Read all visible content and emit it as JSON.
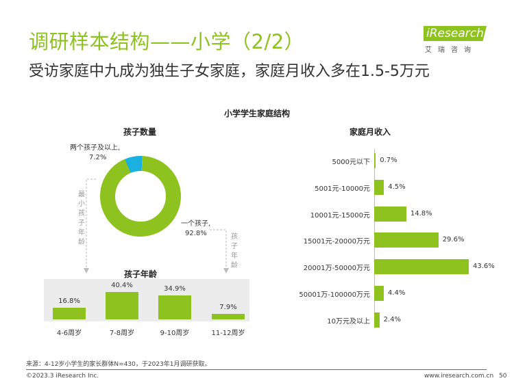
{
  "header": {
    "title": "调研样本结构——小学（2/2）",
    "subtitle": "受访家庭中九成为独生子女家庭，家庭月收入多在1.5-5万元",
    "logo_text": "iResearch",
    "logo_cn": "艾瑞咨询"
  },
  "colors": {
    "accent": "#8dc21f",
    "secondary": "#1ab0e0",
    "gray": "#999999"
  },
  "chart_title": "小学学生家庭结构",
  "chart_data": [
    {
      "type": "pie",
      "title": "孩子数量",
      "slices": [
        {
          "label": "一个孩子,",
          "value": 92.8,
          "value_label": "92.8%",
          "color": "#8dc21f"
        },
        {
          "label": "两个孩子及以上,",
          "value": 7.2,
          "value_label": "7.2%",
          "color": "#1ab0e0"
        }
      ]
    },
    {
      "type": "bar",
      "title": "孩子年龄",
      "categories": [
        "4-6周岁",
        "7-8周岁",
        "9-10周岁",
        "11-12周岁"
      ],
      "values": [
        16.8,
        40.4,
        34.9,
        7.9
      ],
      "value_labels": [
        "16.8%",
        "40.4%",
        "34.9%",
        "7.9%"
      ]
    },
    {
      "type": "bar",
      "orientation": "horizontal",
      "title": "家庭月收入",
      "categories": [
        "5000元以下",
        "5001元-10000元",
        "10001元-15000元",
        "15001元-20000万元",
        "20001万-50000万元",
        "50001万-100000万元",
        "10万元及以上"
      ],
      "values": [
        0.7,
        4.5,
        14.8,
        29.6,
        43.6,
        4.4,
        2.4
      ],
      "value_labels": [
        "0.7%",
        "4.5%",
        "14.8%",
        "29.6%",
        "43.6%",
        "4.4%",
        "2.4%"
      ]
    }
  ],
  "arrows": {
    "left": "最小孩子年龄",
    "right": "孩子年龄"
  },
  "footer": {
    "source": "来源：4-12岁小学生的家长群体N=430，于2023年1月调研获取。",
    "copyright": "©2023.3 iResearch Inc.",
    "url": "www.iresearch.com.cn",
    "page": "50"
  }
}
